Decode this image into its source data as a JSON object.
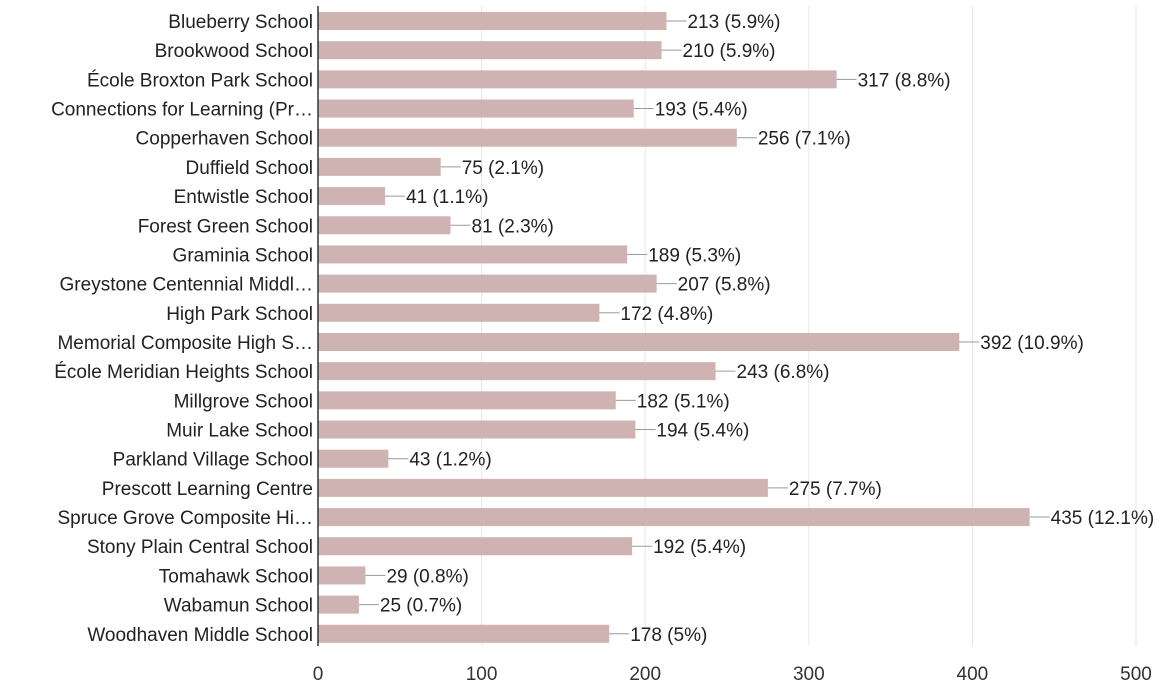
{
  "chart_data": {
    "type": "bar",
    "orientation": "horizontal",
    "title": "",
    "xlabel": "",
    "ylabel": "",
    "xlim": [
      0,
      500
    ],
    "x_ticks": [
      0,
      100,
      200,
      300,
      400,
      500
    ],
    "x_tick_labels": [
      "0",
      "100",
      "200",
      "300",
      "400",
      "500"
    ],
    "grid": "vertical",
    "legend": "none",
    "bar_color": "#cfb3b3",
    "categories": [
      "Blueberry School",
      "Brookwood School",
      "École Broxton Park School",
      "Connections for Learning (Pr…",
      "Copperhaven School",
      "Duffield School",
      "Entwistle School",
      "Forest Green School",
      "Graminia School",
      "Greystone Centennial Middl…",
      "High Park School",
      "Memorial Composite High S…",
      "École Meridian Heights School",
      "Millgrove School",
      "Muir Lake School",
      "Parkland Village School",
      "Prescott Learning Centre",
      "Spruce Grove Composite Hi…",
      "Stony Plain Central School",
      "Tomahawk School",
      "Wabamun School",
      "Woodhaven Middle School"
    ],
    "values": [
      213,
      210,
      317,
      193,
      256,
      75,
      41,
      81,
      189,
      207,
      172,
      392,
      243,
      182,
      194,
      43,
      275,
      435,
      192,
      29,
      25,
      178
    ],
    "data_labels": [
      "213 (5.9%)",
      "210 (5.9%)",
      "317 (8.8%)",
      "193 (5.4%)",
      "256 (7.1%)",
      "75 (2.1%)",
      "41 (1.1%)",
      "81 (2.3%)",
      "189 (5.3%)",
      "207 (5.8%)",
      "172 (4.8%)",
      "392 (10.9%)",
      "243 (6.8%)",
      "182 (5.1%)",
      "194 (5.4%)",
      "43 (1.2%)",
      "275 (7.7%)",
      "435 (12.1%)",
      "192 (5.4%)",
      "29 (0.8%)",
      "25 (0.7%)",
      "178 (5%)"
    ]
  }
}
